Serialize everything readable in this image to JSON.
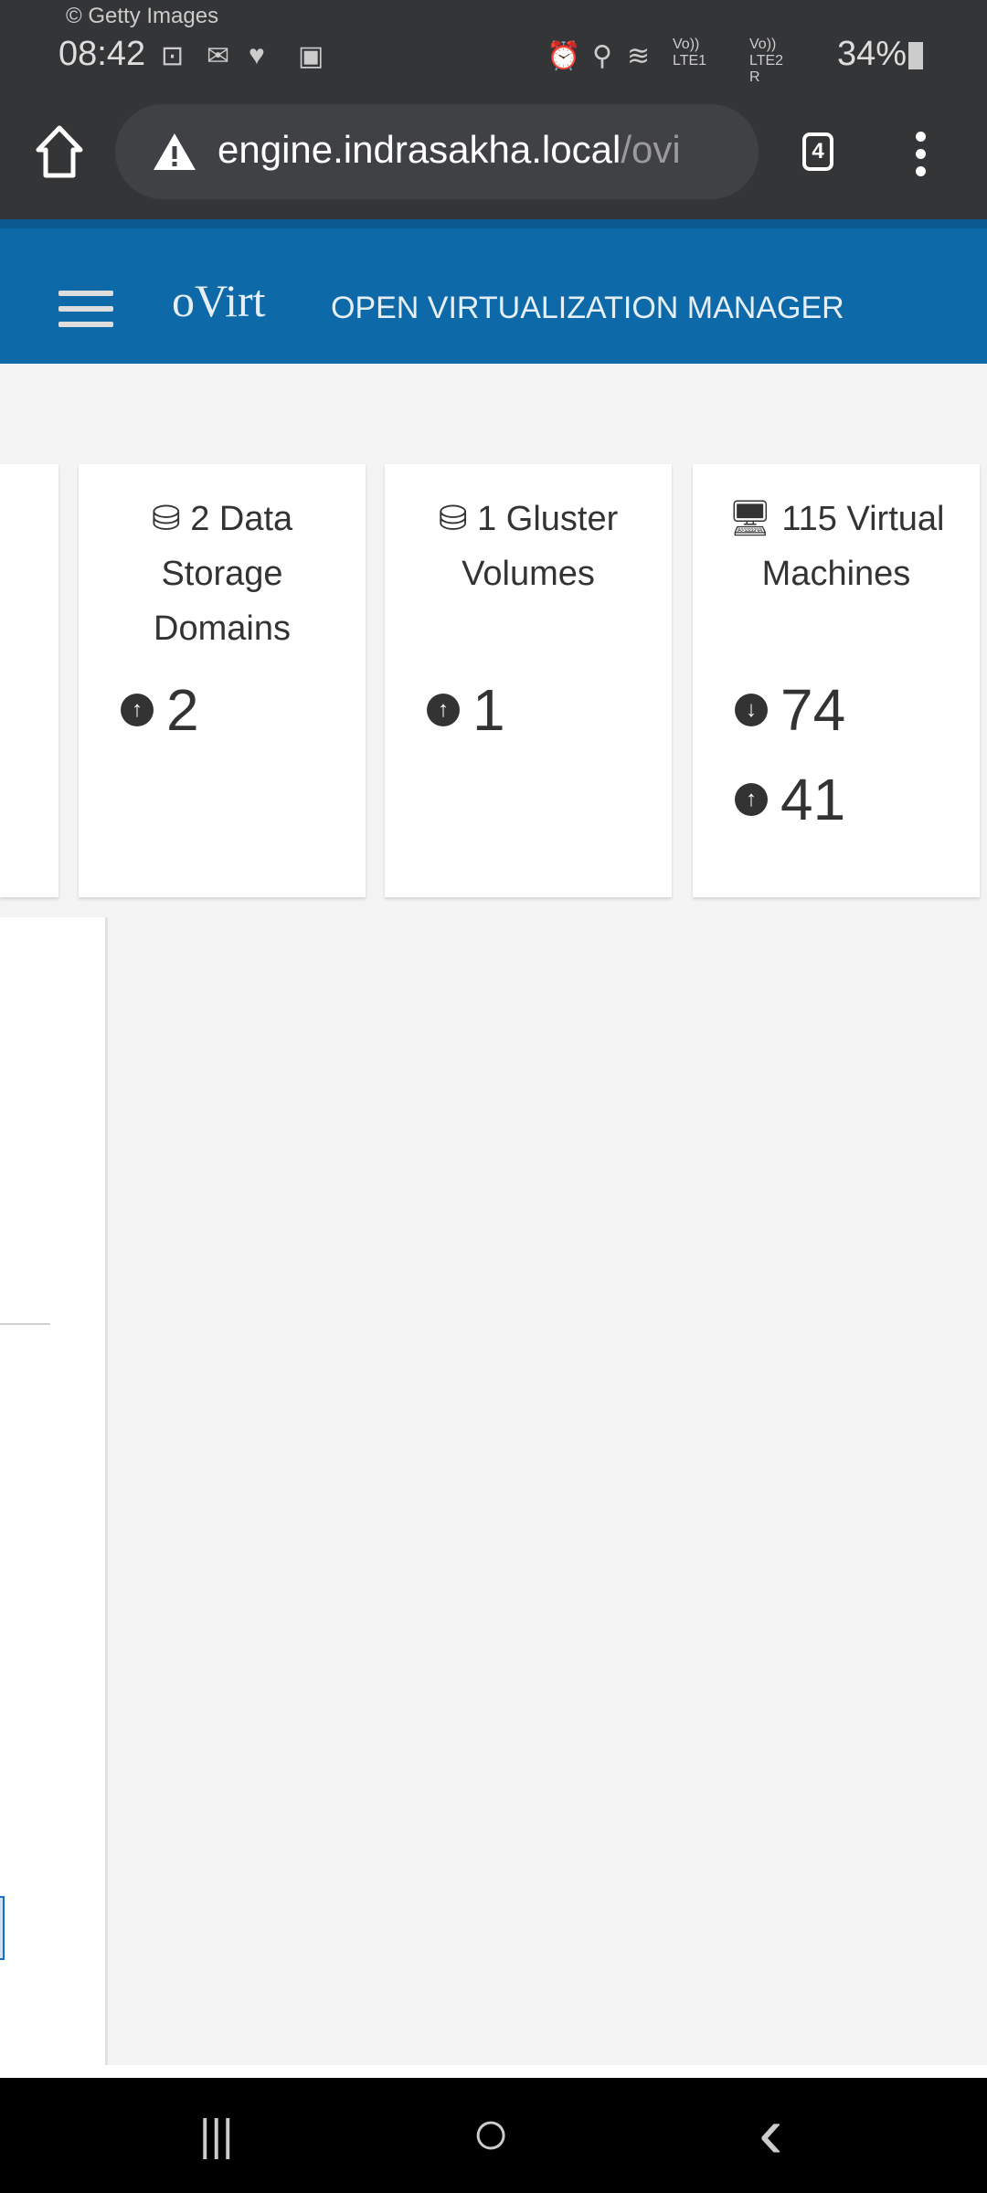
{
  "status_bar": {
    "watermark": "© Getty Images",
    "time": "08:42",
    "notification_icons": [
      "battery-saver-icon",
      "gmail-icon",
      "health-icon",
      "gallery-icon"
    ],
    "system_icons": [
      "alarm-icon",
      "location-icon",
      "wifi-icon",
      "lte1-signal-icon",
      "lte2-signal-icon"
    ],
    "lte1": "Vo)) LTE1",
    "lte2": "Vo)) LTE2 R",
    "battery": "34%"
  },
  "browser": {
    "url_host": "engine.indrasakha.local",
    "url_path": "/ovi",
    "tab_count": "4"
  },
  "header": {
    "logo": "oVirt",
    "title": "OPEN VIRTUALIZATION MANAGER",
    "color": "#0e69a8"
  },
  "cards": [
    {
      "icon": "storage-domain-icon",
      "title": "2 Data Storage Domains",
      "rows": [
        {
          "icon": "arrow-up-circle-icon",
          "value": "2"
        }
      ]
    },
    {
      "icon": "database-icon",
      "title": "1 Gluster Volumes",
      "rows": [
        {
          "icon": "arrow-up-circle-icon",
          "value": "1"
        }
      ]
    },
    {
      "icon": "virtual-machine-icon",
      "title": "115 Virtual Machines",
      "rows": [
        {
          "icon": "arrow-down-circle-icon",
          "value": "74"
        },
        {
          "icon": "arrow-up-circle-icon",
          "value": "41"
        }
      ]
    }
  ],
  "nav": {
    "recents": "|||",
    "home": "○",
    "back": "‹"
  }
}
